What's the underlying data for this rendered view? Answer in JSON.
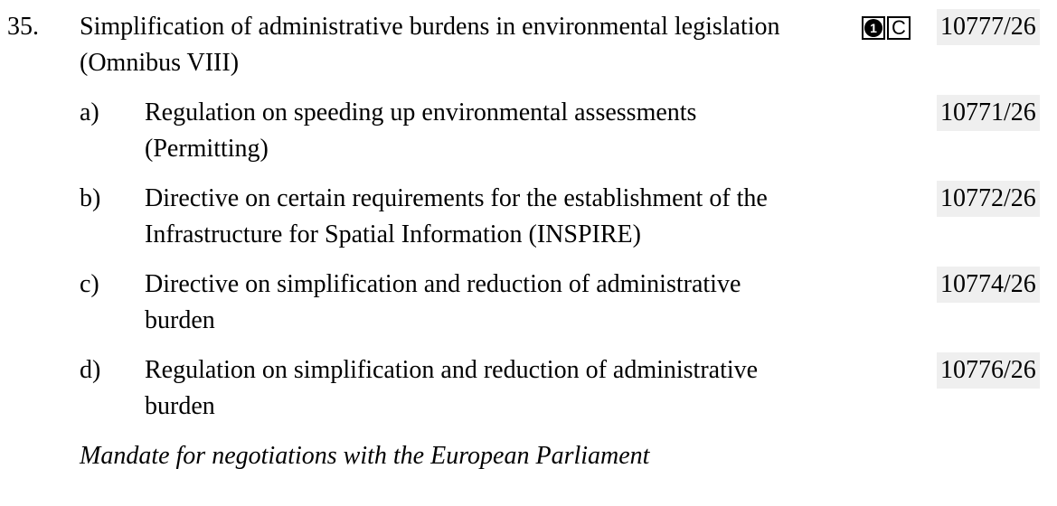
{
  "item": {
    "number": "35.",
    "title": "Simplification of administrative burdens in environmental legislation (Omnibus VIII)",
    "badges": [
      "1",
      "C"
    ],
    "doc_ref": "10777/26",
    "subitems": [
      {
        "letter": "a)",
        "text": "Regulation on speeding up environmental assessments (Permitting)",
        "doc_ref": "10771/26"
      },
      {
        "letter": "b)",
        "text": "Directive on certain requirements for the establishment of the Infrastructure for Spatial Information (INSPIRE)",
        "doc_ref": "10772/26"
      },
      {
        "letter": "c)",
        "text": "Directive on simplification and reduction of administrative burden",
        "doc_ref": "10774/26"
      },
      {
        "letter": "d)",
        "text": "Regulation on simplification and reduction of administrative burden",
        "doc_ref": "10776/26"
      }
    ],
    "note": "Mandate for negotiations with the European Parliament"
  }
}
